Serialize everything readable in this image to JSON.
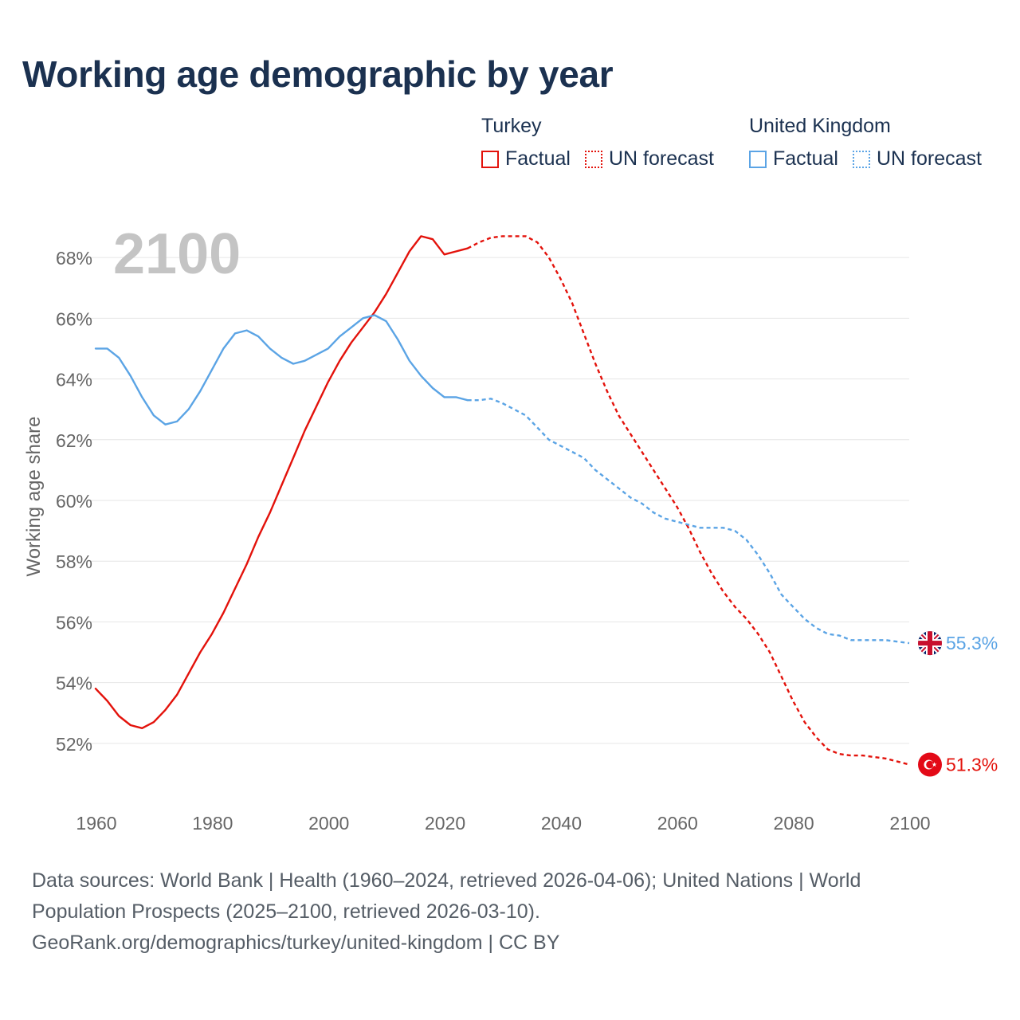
{
  "title": "Working age demographic by year",
  "legend": {
    "groups": [
      {
        "name": "Turkey",
        "color": "#e3120b",
        "factual_label": "Factual",
        "forecast_label": "UN forecast"
      },
      {
        "name": "United Kingdom",
        "color": "#5ba4e5",
        "factual_label": "Factual",
        "forecast_label": "UN forecast"
      }
    ]
  },
  "chart_data": {
    "type": "line",
    "title": "Working age demographic by year",
    "ylabel": "Working age share",
    "xlabel": "",
    "year_label": "2100",
    "xlim": [
      1960,
      2100
    ],
    "ylim": [
      50.5,
      69
    ],
    "x_ticks": [
      1960,
      1980,
      2000,
      2020,
      2040,
      2060,
      2080,
      2100
    ],
    "y_ticks": [
      52,
      54,
      56,
      58,
      60,
      62,
      64,
      66,
      68
    ],
    "y_tick_labels": [
      "52%",
      "54%",
      "56%",
      "58%",
      "60%",
      "62%",
      "64%",
      "66%",
      "68%"
    ],
    "grid": true,
    "factual_range": [
      1960,
      2024
    ],
    "forecast_range": [
      2025,
      2100
    ],
    "series": [
      {
        "name": "Turkey",
        "color": "#e3120b",
        "end_label": "51.3%",
        "flag": "turkey-flag",
        "points": [
          [
            1960,
            53.8
          ],
          [
            1962,
            53.4
          ],
          [
            1964,
            52.9
          ],
          [
            1966,
            52.6
          ],
          [
            1968,
            52.5
          ],
          [
            1970,
            52.7
          ],
          [
            1972,
            53.1
          ],
          [
            1974,
            53.6
          ],
          [
            1976,
            54.3
          ],
          [
            1978,
            55.0
          ],
          [
            1980,
            55.6
          ],
          [
            1982,
            56.3
          ],
          [
            1984,
            57.1
          ],
          [
            1986,
            57.9
          ],
          [
            1988,
            58.8
          ],
          [
            1990,
            59.6
          ],
          [
            1992,
            60.5
          ],
          [
            1994,
            61.4
          ],
          [
            1996,
            62.3
          ],
          [
            1998,
            63.1
          ],
          [
            2000,
            63.9
          ],
          [
            2002,
            64.6
          ],
          [
            2004,
            65.2
          ],
          [
            2006,
            65.7
          ],
          [
            2008,
            66.2
          ],
          [
            2010,
            66.8
          ],
          [
            2012,
            67.5
          ],
          [
            2014,
            68.2
          ],
          [
            2016,
            68.7
          ],
          [
            2018,
            68.6
          ],
          [
            2020,
            68.1
          ],
          [
            2022,
            68.2
          ],
          [
            2024,
            68.3
          ],
          [
            2026,
            68.5
          ],
          [
            2028,
            68.65
          ],
          [
            2030,
            68.7
          ],
          [
            2032,
            68.7
          ],
          [
            2034,
            68.7
          ],
          [
            2036,
            68.5
          ],
          [
            2038,
            68.0
          ],
          [
            2040,
            67.3
          ],
          [
            2042,
            66.5
          ],
          [
            2044,
            65.5
          ],
          [
            2046,
            64.5
          ],
          [
            2048,
            63.6
          ],
          [
            2050,
            62.8
          ],
          [
            2052,
            62.2
          ],
          [
            2054,
            61.6
          ],
          [
            2056,
            61.0
          ],
          [
            2058,
            60.4
          ],
          [
            2060,
            59.8
          ],
          [
            2062,
            59.1
          ],
          [
            2064,
            58.3
          ],
          [
            2066,
            57.6
          ],
          [
            2068,
            57.0
          ],
          [
            2070,
            56.5
          ],
          [
            2072,
            56.1
          ],
          [
            2074,
            55.6
          ],
          [
            2076,
            55.0
          ],
          [
            2078,
            54.2
          ],
          [
            2080,
            53.4
          ],
          [
            2082,
            52.7
          ],
          [
            2084,
            52.2
          ],
          [
            2086,
            51.8
          ],
          [
            2088,
            51.65
          ],
          [
            2090,
            51.6
          ],
          [
            2092,
            51.6
          ],
          [
            2094,
            51.55
          ],
          [
            2096,
            51.5
          ],
          [
            2098,
            51.4
          ],
          [
            2100,
            51.3
          ]
        ]
      },
      {
        "name": "United Kingdom",
        "color": "#5ba4e5",
        "end_label": "55.3%",
        "flag": "united-kingdom-flag",
        "points": [
          [
            1960,
            65.0
          ],
          [
            1962,
            65.0
          ],
          [
            1964,
            64.7
          ],
          [
            1966,
            64.1
          ],
          [
            1968,
            63.4
          ],
          [
            1970,
            62.8
          ],
          [
            1972,
            62.5
          ],
          [
            1974,
            62.6
          ],
          [
            1976,
            63.0
          ],
          [
            1978,
            63.6
          ],
          [
            1980,
            64.3
          ],
          [
            1982,
            65.0
          ],
          [
            1984,
            65.5
          ],
          [
            1986,
            65.6
          ],
          [
            1988,
            65.4
          ],
          [
            1990,
            65.0
          ],
          [
            1992,
            64.7
          ],
          [
            1994,
            64.5
          ],
          [
            1996,
            64.6
          ],
          [
            1998,
            64.8
          ],
          [
            2000,
            65.0
          ],
          [
            2002,
            65.4
          ],
          [
            2004,
            65.7
          ],
          [
            2006,
            66.0
          ],
          [
            2008,
            66.1
          ],
          [
            2010,
            65.9
          ],
          [
            2012,
            65.3
          ],
          [
            2014,
            64.6
          ],
          [
            2016,
            64.1
          ],
          [
            2018,
            63.7
          ],
          [
            2020,
            63.4
          ],
          [
            2022,
            63.4
          ],
          [
            2024,
            63.3
          ],
          [
            2026,
            63.3
          ],
          [
            2028,
            63.35
          ],
          [
            2030,
            63.2
          ],
          [
            2032,
            63.0
          ],
          [
            2034,
            62.8
          ],
          [
            2036,
            62.4
          ],
          [
            2038,
            62.0
          ],
          [
            2040,
            61.8
          ],
          [
            2042,
            61.6
          ],
          [
            2044,
            61.4
          ],
          [
            2046,
            61.0
          ],
          [
            2048,
            60.7
          ],
          [
            2050,
            60.4
          ],
          [
            2052,
            60.1
          ],
          [
            2054,
            59.9
          ],
          [
            2056,
            59.6
          ],
          [
            2058,
            59.4
          ],
          [
            2060,
            59.3
          ],
          [
            2062,
            59.2
          ],
          [
            2064,
            59.1
          ],
          [
            2066,
            59.1
          ],
          [
            2068,
            59.1
          ],
          [
            2070,
            59.0
          ],
          [
            2072,
            58.7
          ],
          [
            2074,
            58.2
          ],
          [
            2076,
            57.6
          ],
          [
            2078,
            56.9
          ],
          [
            2080,
            56.5
          ],
          [
            2082,
            56.1
          ],
          [
            2084,
            55.8
          ],
          [
            2086,
            55.6
          ],
          [
            2088,
            55.55
          ],
          [
            2090,
            55.4
          ],
          [
            2092,
            55.4
          ],
          [
            2094,
            55.4
          ],
          [
            2096,
            55.4
          ],
          [
            2098,
            55.35
          ],
          [
            2100,
            55.3
          ]
        ]
      }
    ]
  },
  "footer": {
    "line1": "Data sources: World Bank | Health (1960–2024, retrieved 2026-04-06); United Nations | World",
    "line2": "Population Prospects (2025–2100, retrieved 2026-03-10).",
    "line3": "GeoRank.org/demographics/turkey/united-kingdom | CC BY"
  }
}
